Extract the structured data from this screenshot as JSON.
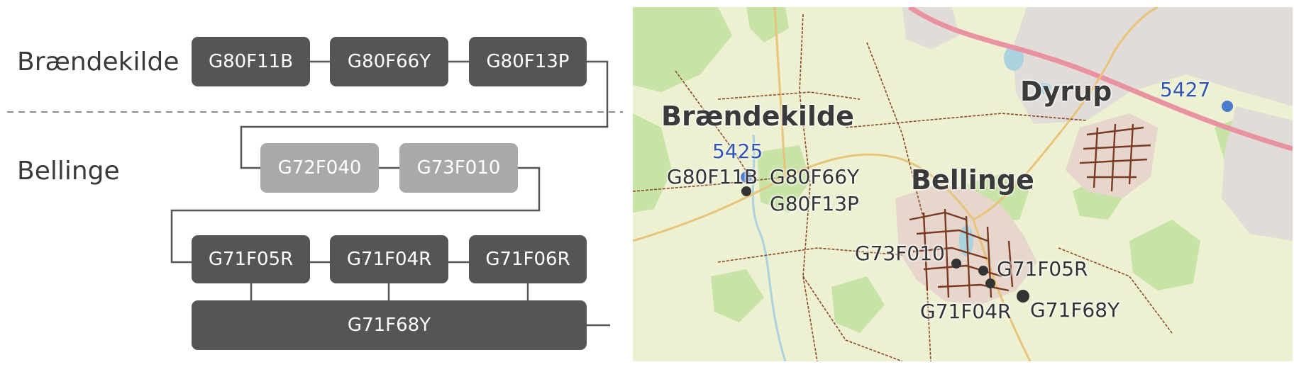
{
  "diagram": {
    "regions": [
      "Brændekilde",
      "Bellinge"
    ],
    "row1": [
      "G80F11B",
      "G80F66Y",
      "G80F13P"
    ],
    "row2": [
      "G72F040",
      "G73F010"
    ],
    "row3": [
      "G71F05R",
      "G71F04R",
      "G71F06R"
    ],
    "outlet": "G71F68Y"
  },
  "map": {
    "towns": [
      "Brændekilde",
      "Bellinge",
      "Dyrup"
    ],
    "stations": [
      "5425",
      "5427"
    ],
    "sites": [
      "G80F11B",
      "G80F66Y",
      "G80F13P",
      "G73F010",
      "G71F05R",
      "G71F04R",
      "G71F68Y"
    ]
  },
  "colors": {
    "box_dark": "#555555",
    "box_light": "#a9a9a9",
    "connector": "#555555",
    "station_blue": "#2f55b0",
    "station_dot": "#4a7bd0",
    "site_dot": "#333333",
    "map_base": "#eef0d2",
    "map_green": "#c7e3a6",
    "map_residential": "#e2dcd8",
    "map_road": "#d9b46a",
    "map_track": "#8b4a2b",
    "map_water": "#aad3df"
  }
}
